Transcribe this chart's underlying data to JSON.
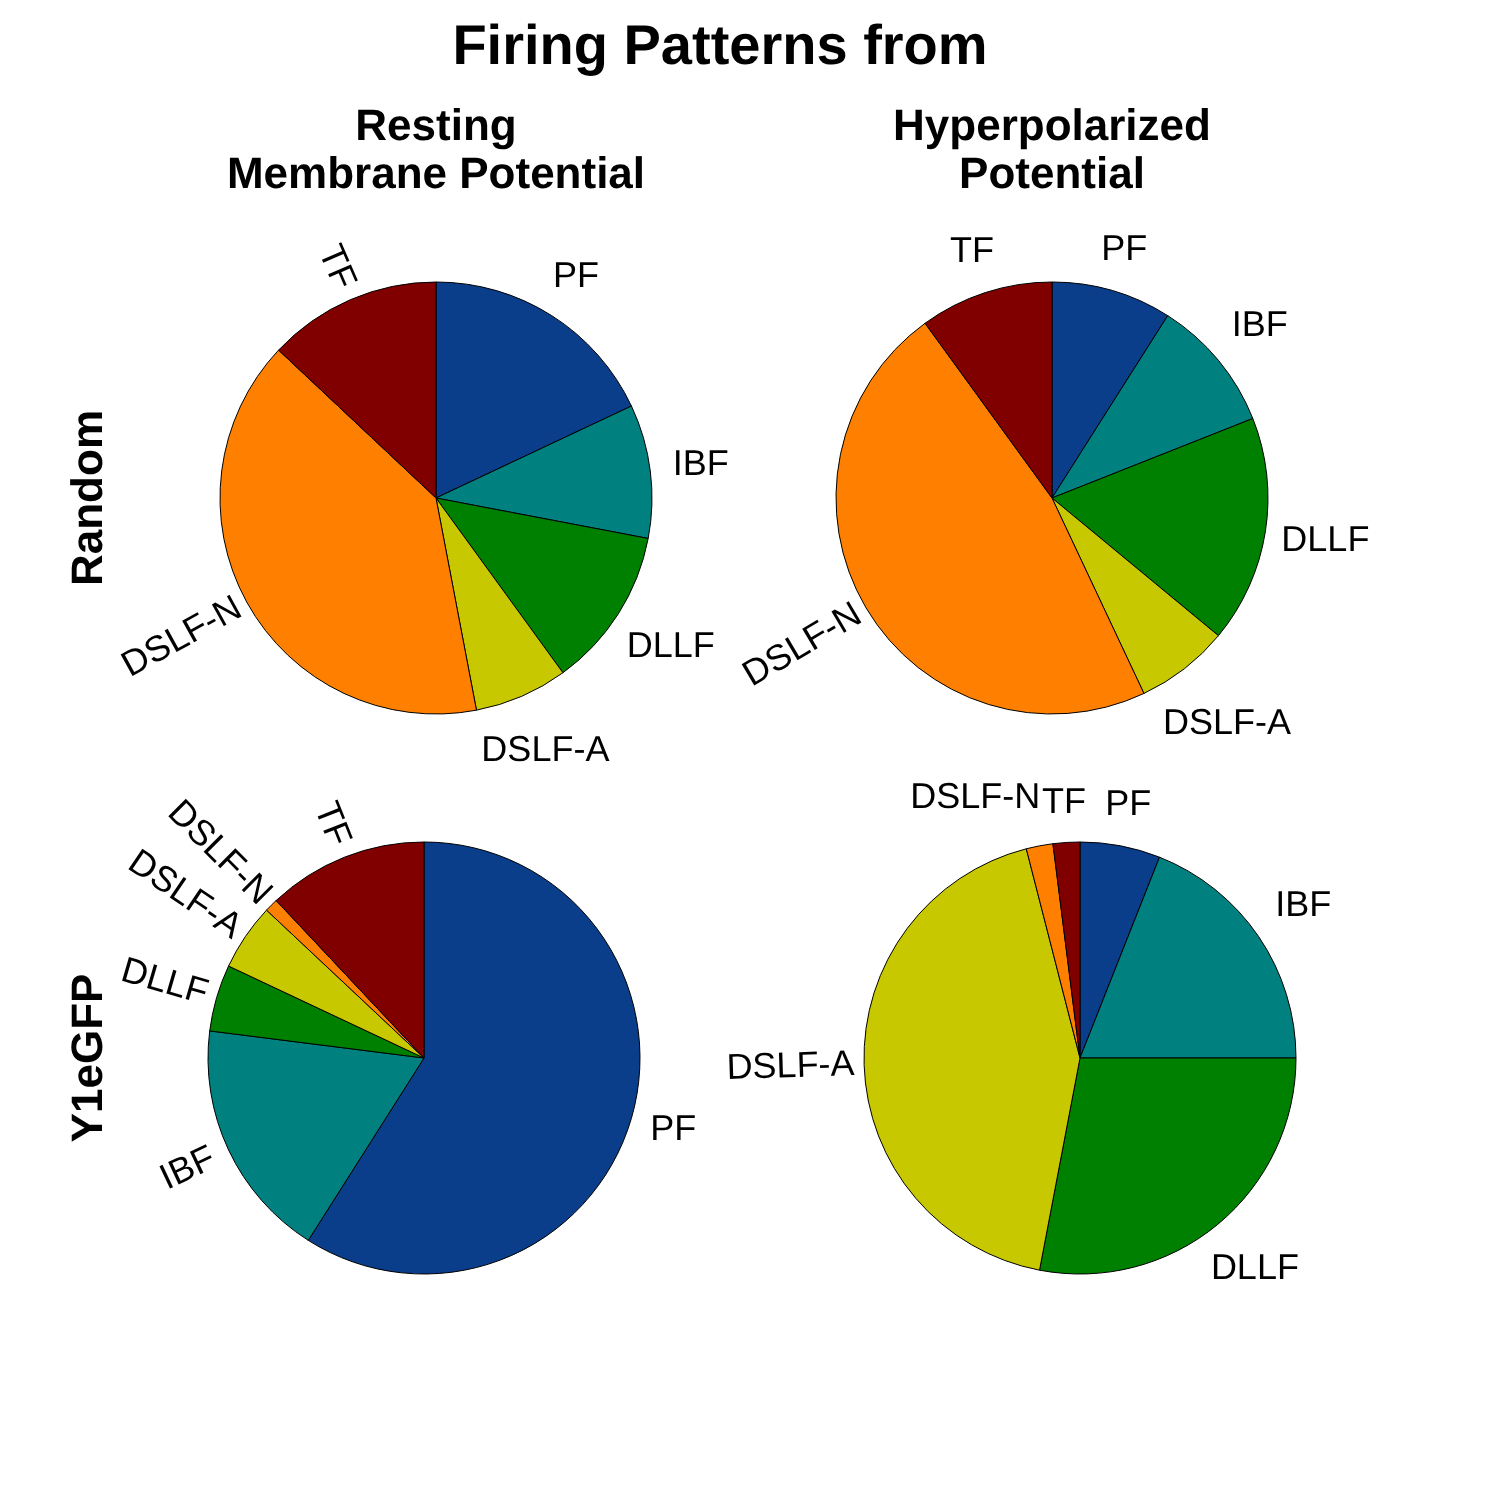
{
  "chart_data": [
    {
      "type": "pie",
      "title": "Resting\nMembrane Potential",
      "ylabel": "Random",
      "annotations": [
        "Firing Patterns from"
      ],
      "categories": [
        "PF",
        "IBF",
        "DLLF",
        "DSLF-A",
        "DSLF-N",
        "TF"
      ],
      "values": [
        18,
        10,
        12,
        7,
        40,
        13
      ],
      "colors": [
        "#0a3d8a",
        "#00807f",
        "#008000",
        "#c8c800",
        "#ff8000",
        "#800000"
      ]
    },
    {
      "type": "pie",
      "title": "Hyperpolarized\nPotential",
      "categories": [
        "PF",
        "IBF",
        "DLLF",
        "DSLF-A",
        "DSLF-N",
        "TF"
      ],
      "values": [
        9,
        10,
        17,
        7,
        47,
        10
      ],
      "colors": [
        "#0a3d8a",
        "#00807f",
        "#008000",
        "#c8c800",
        "#ff8000",
        "#800000"
      ]
    },
    {
      "type": "pie",
      "ylabel": "Y1eGFP",
      "categories": [
        "PF",
        "IBF",
        "DLLF",
        "DSLF-A",
        "DSLF-N",
        "TF"
      ],
      "values": [
        59,
        18,
        5,
        5,
        1,
        12
      ],
      "colors": [
        "#0a3d8a",
        "#00807f",
        "#008000",
        "#c8c800",
        "#ff8000",
        "#800000"
      ]
    },
    {
      "type": "pie",
      "categories": [
        "PF",
        "IBF",
        "DLLF",
        "DSLF-A",
        "DSLF-N",
        "TF"
      ],
      "values": [
        6,
        19,
        28,
        43,
        2,
        2
      ],
      "colors": [
        "#0a3d8a",
        "#00807f",
        "#008000",
        "#c8c800",
        "#ff8000",
        "#800000"
      ]
    }
  ]
}
